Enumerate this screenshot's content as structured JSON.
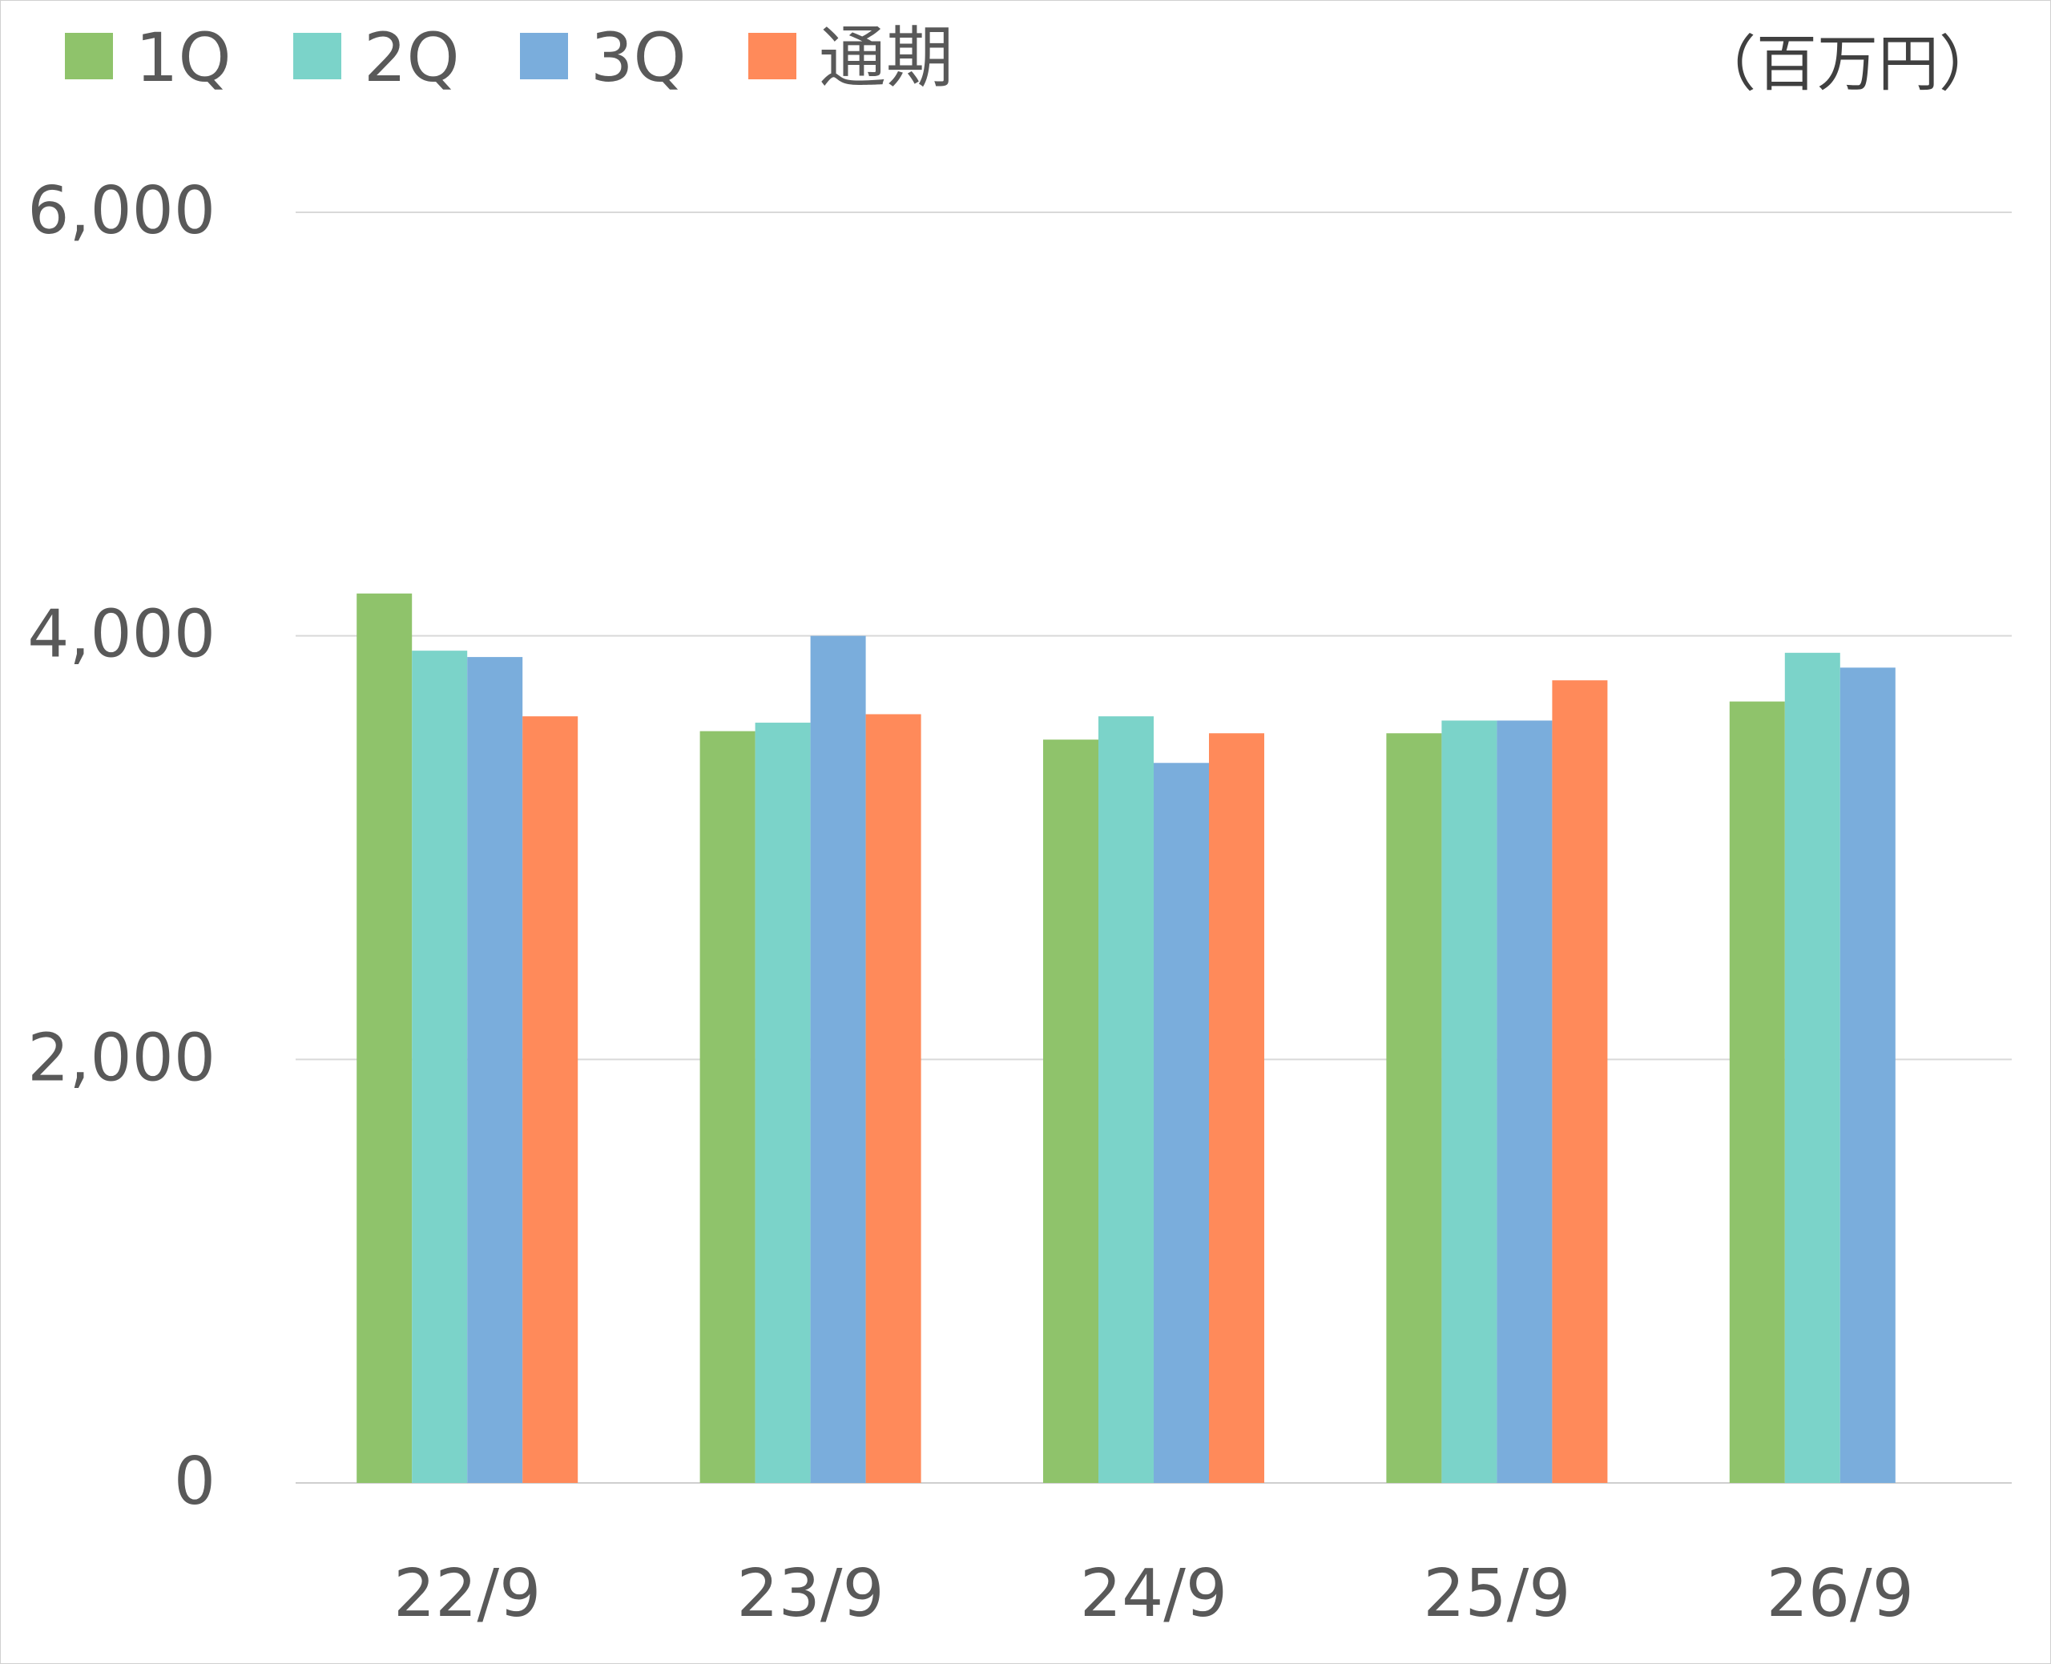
{
  "chart_data": {
    "type": "bar",
    "unit_label": "（百万円）",
    "categories": [
      "22/9",
      "23/9",
      "24/9",
      "25/9",
      "26/9"
    ],
    "series": [
      {
        "name": "1Q",
        "color": "#8fc36b",
        "values": [
          4200,
          3550,
          3510,
          3540,
          3690
        ]
      },
      {
        "name": "2Q",
        "color": "#7bd3c9",
        "values": [
          3930,
          3590,
          3620,
          3600,
          3920
        ]
      },
      {
        "name": "3Q",
        "color": "#7aaddc",
        "values": [
          3900,
          4000,
          3400,
          3600,
          3850
        ]
      },
      {
        "name": "通期",
        "color": "#ff8a5a",
        "values": [
          3620,
          3630,
          3540,
          3790,
          null
        ]
      }
    ],
    "y_ticks": [
      "0",
      "2,000",
      "4,000",
      "6,000"
    ],
    "ylim": [
      0,
      6000
    ],
    "grid": true,
    "legend_position": "top-left"
  }
}
